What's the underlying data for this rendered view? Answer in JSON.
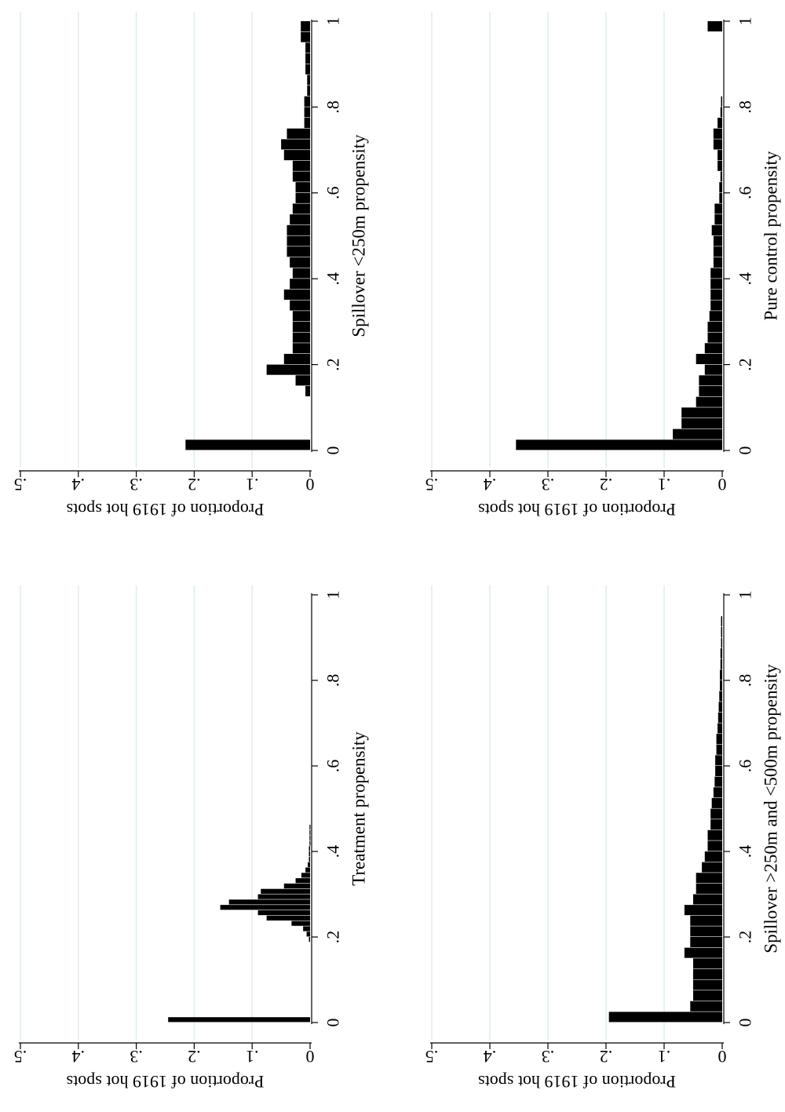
{
  "chart_data": [
    {
      "id": "top-left",
      "type": "bar",
      "title": "",
      "xlabel": "Treatment propensity",
      "ylabel": "Proportion of 1919 hot spots",
      "xlim": [
        0,
        1
      ],
      "ylim": [
        0,
        0.5
      ],
      "grid": true,
      "orientation": "rotated-90-clockwise",
      "x_ticks": [
        0,
        0.2,
        0.4,
        0.6,
        0.8,
        1
      ],
      "x_tick_labels": [
        "0",
        ".2",
        ".4",
        ".6",
        ".8",
        "1"
      ],
      "y_ticks": [
        0,
        0.1,
        0.2,
        0.3,
        0.4,
        0.5
      ],
      "y_tick_labels": [
        "0",
        ".1",
        ".2",
        ".3",
        ".4",
        ".5"
      ],
      "bin_width": 0.0125,
      "bins": [
        {
          "x": 0.0,
          "y": 0.245
        },
        {
          "x": 0.1875,
          "y": 0.002
        },
        {
          "x": 0.2,
          "y": 0.006
        },
        {
          "x": 0.2125,
          "y": 0.012
        },
        {
          "x": 0.225,
          "y": 0.032
        },
        {
          "x": 0.2375,
          "y": 0.075
        },
        {
          "x": 0.25,
          "y": 0.09
        },
        {
          "x": 0.2625,
          "y": 0.155
        },
        {
          "x": 0.275,
          "y": 0.14
        },
        {
          "x": 0.2875,
          "y": 0.09
        },
        {
          "x": 0.3,
          "y": 0.085
        },
        {
          "x": 0.3125,
          "y": 0.045
        },
        {
          "x": 0.325,
          "y": 0.025
        },
        {
          "x": 0.3375,
          "y": 0.015
        },
        {
          "x": 0.35,
          "y": 0.008
        },
        {
          "x": 0.3625,
          "y": 0.004
        },
        {
          "x": 0.375,
          "y": 0.002
        },
        {
          "x": 0.3875,
          "y": 0.002
        },
        {
          "x": 0.4,
          "y": 0.002
        },
        {
          "x": 0.4125,
          "y": 0.001
        },
        {
          "x": 0.425,
          "y": 0.001
        },
        {
          "x": 0.4375,
          "y": 0.001
        },
        {
          "x": 0.45,
          "y": 0.001
        }
      ]
    },
    {
      "id": "top-right",
      "type": "bar",
      "title": "",
      "xlabel": "Spillover <250m propensity",
      "ylabel": "Proportion of 1919 hot spots",
      "xlim": [
        0,
        1
      ],
      "ylim": [
        0,
        0.5
      ],
      "grid": true,
      "orientation": "rotated-90-clockwise",
      "x_ticks": [
        0,
        0.2,
        0.4,
        0.6,
        0.8,
        1
      ],
      "x_tick_labels": [
        "0",
        ".2",
        ".4",
        ".6",
        ".8",
        "1"
      ],
      "y_ticks": [
        0,
        0.1,
        0.2,
        0.3,
        0.4,
        0.5
      ],
      "y_tick_labels": [
        "0",
        ".1",
        ".2",
        ".3",
        ".4",
        ".5"
      ],
      "bin_width": 0.025,
      "bins": [
        {
          "x": 0.0,
          "y": 0.215
        },
        {
          "x": 0.125,
          "y": 0.008
        },
        {
          "x": 0.15,
          "y": 0.025
        },
        {
          "x": 0.175,
          "y": 0.075
        },
        {
          "x": 0.2,
          "y": 0.045
        },
        {
          "x": 0.225,
          "y": 0.03
        },
        {
          "x": 0.25,
          "y": 0.03
        },
        {
          "x": 0.275,
          "y": 0.03
        },
        {
          "x": 0.3,
          "y": 0.03
        },
        {
          "x": 0.325,
          "y": 0.035
        },
        {
          "x": 0.35,
          "y": 0.045
        },
        {
          "x": 0.375,
          "y": 0.035
        },
        {
          "x": 0.4,
          "y": 0.03
        },
        {
          "x": 0.425,
          "y": 0.035
        },
        {
          "x": 0.45,
          "y": 0.04
        },
        {
          "x": 0.475,
          "y": 0.04
        },
        {
          "x": 0.5,
          "y": 0.04
        },
        {
          "x": 0.525,
          "y": 0.035
        },
        {
          "x": 0.55,
          "y": 0.03
        },
        {
          "x": 0.575,
          "y": 0.025
        },
        {
          "x": 0.6,
          "y": 0.025
        },
        {
          "x": 0.625,
          "y": 0.03
        },
        {
          "x": 0.65,
          "y": 0.03
        },
        {
          "x": 0.675,
          "y": 0.045
        },
        {
          "x": 0.7,
          "y": 0.05
        },
        {
          "x": 0.725,
          "y": 0.04
        },
        {
          "x": 0.75,
          "y": 0.01
        },
        {
          "x": 0.775,
          "y": 0.01
        },
        {
          "x": 0.8,
          "y": 0.01
        },
        {
          "x": 0.825,
          "y": 0.005
        },
        {
          "x": 0.85,
          "y": 0.005
        },
        {
          "x": 0.875,
          "y": 0.008
        },
        {
          "x": 0.9,
          "y": 0.008
        },
        {
          "x": 0.925,
          "y": 0.008
        },
        {
          "x": 0.95,
          "y": 0.016
        },
        {
          "x": 0.975,
          "y": 0.016
        }
      ]
    },
    {
      "id": "bottom-left",
      "type": "bar",
      "title": "",
      "xlabel": "Spillover >250m and <500m propensity",
      "ylabel": "Proportion of 1919 hot spots",
      "xlim": [
        0,
        1
      ],
      "ylim": [
        0,
        0.5
      ],
      "grid": true,
      "orientation": "rotated-90-clockwise",
      "x_ticks": [
        0,
        0.2,
        0.4,
        0.6,
        0.8,
        1
      ],
      "x_tick_labels": [
        "0",
        ".2",
        ".4",
        ".6",
        ".8",
        "1"
      ],
      "y_ticks": [
        0,
        0.1,
        0.2,
        0.3,
        0.4,
        0.5
      ],
      "y_tick_labels": [
        "0",
        ".1",
        ".2",
        ".3",
        ".4",
        ".5"
      ],
      "bin_width": 0.025,
      "bins": [
        {
          "x": 0.0,
          "y": 0.195
        },
        {
          "x": 0.025,
          "y": 0.055
        },
        {
          "x": 0.05,
          "y": 0.05
        },
        {
          "x": 0.075,
          "y": 0.05
        },
        {
          "x": 0.1,
          "y": 0.05
        },
        {
          "x": 0.125,
          "y": 0.05
        },
        {
          "x": 0.15,
          "y": 0.065
        },
        {
          "x": 0.175,
          "y": 0.055
        },
        {
          "x": 0.2,
          "y": 0.055
        },
        {
          "x": 0.225,
          "y": 0.055
        },
        {
          "x": 0.25,
          "y": 0.065
        },
        {
          "x": 0.275,
          "y": 0.05
        },
        {
          "x": 0.3,
          "y": 0.045
        },
        {
          "x": 0.325,
          "y": 0.045
        },
        {
          "x": 0.35,
          "y": 0.035
        },
        {
          "x": 0.375,
          "y": 0.03
        },
        {
          "x": 0.4,
          "y": 0.025
        },
        {
          "x": 0.425,
          "y": 0.025
        },
        {
          "x": 0.45,
          "y": 0.02
        },
        {
          "x": 0.475,
          "y": 0.02
        },
        {
          "x": 0.5,
          "y": 0.018
        },
        {
          "x": 0.525,
          "y": 0.015
        },
        {
          "x": 0.55,
          "y": 0.013
        },
        {
          "x": 0.575,
          "y": 0.012
        },
        {
          "x": 0.6,
          "y": 0.012
        },
        {
          "x": 0.625,
          "y": 0.01
        },
        {
          "x": 0.65,
          "y": 0.01
        },
        {
          "x": 0.675,
          "y": 0.008
        },
        {
          "x": 0.7,
          "y": 0.007
        },
        {
          "x": 0.725,
          "y": 0.006
        },
        {
          "x": 0.75,
          "y": 0.005
        },
        {
          "x": 0.775,
          "y": 0.004
        },
        {
          "x": 0.8,
          "y": 0.004
        },
        {
          "x": 0.825,
          "y": 0.003
        },
        {
          "x": 0.85,
          "y": 0.003
        },
        {
          "x": 0.875,
          "y": 0.002
        },
        {
          "x": 0.9,
          "y": 0.002
        },
        {
          "x": 0.925,
          "y": 0.002
        }
      ]
    },
    {
      "id": "bottom-right",
      "type": "bar",
      "title": "",
      "xlabel": "Pure control propensity",
      "ylabel": "Proportion of 1919 hot spots",
      "xlim": [
        0,
        1
      ],
      "ylim": [
        0,
        0.5
      ],
      "grid": true,
      "orientation": "rotated-90-clockwise",
      "x_ticks": [
        0,
        0.2,
        0.4,
        0.6,
        0.8,
        1
      ],
      "x_tick_labels": [
        "0",
        ".2",
        ".4",
        ".6",
        ".8",
        "1"
      ],
      "y_ticks": [
        0,
        0.1,
        0.2,
        0.3,
        0.4,
        0.5
      ],
      "y_tick_labels": [
        "0",
        ".1",
        ".2",
        ".3",
        ".4",
        ".5"
      ],
      "bin_width": 0.025,
      "bins": [
        {
          "x": 0.0,
          "y": 0.355
        },
        {
          "x": 0.025,
          "y": 0.085
        },
        {
          "x": 0.05,
          "y": 0.07
        },
        {
          "x": 0.075,
          "y": 0.07
        },
        {
          "x": 0.1,
          "y": 0.045
        },
        {
          "x": 0.125,
          "y": 0.04
        },
        {
          "x": 0.15,
          "y": 0.04
        },
        {
          "x": 0.175,
          "y": 0.03
        },
        {
          "x": 0.2,
          "y": 0.045
        },
        {
          "x": 0.225,
          "y": 0.03
        },
        {
          "x": 0.25,
          "y": 0.025
        },
        {
          "x": 0.275,
          "y": 0.025
        },
        {
          "x": 0.3,
          "y": 0.022
        },
        {
          "x": 0.325,
          "y": 0.02
        },
        {
          "x": 0.35,
          "y": 0.02
        },
        {
          "x": 0.375,
          "y": 0.02
        },
        {
          "x": 0.4,
          "y": 0.02
        },
        {
          "x": 0.425,
          "y": 0.015
        },
        {
          "x": 0.45,
          "y": 0.015
        },
        {
          "x": 0.475,
          "y": 0.015
        },
        {
          "x": 0.5,
          "y": 0.018
        },
        {
          "x": 0.525,
          "y": 0.013
        },
        {
          "x": 0.55,
          "y": 0.013
        },
        {
          "x": 0.575,
          "y": 0.005
        },
        {
          "x": 0.6,
          "y": 0.005
        },
        {
          "x": 0.625,
          "y": 0.003
        },
        {
          "x": 0.65,
          "y": 0.008
        },
        {
          "x": 0.675,
          "y": 0.008
        },
        {
          "x": 0.7,
          "y": 0.015
        },
        {
          "x": 0.725,
          "y": 0.015
        },
        {
          "x": 0.75,
          "y": 0.008
        },
        {
          "x": 0.775,
          "y": 0.003
        },
        {
          "x": 0.8,
          "y": 0.002
        },
        {
          "x": 0.975,
          "y": 0.025
        }
      ]
    }
  ]
}
